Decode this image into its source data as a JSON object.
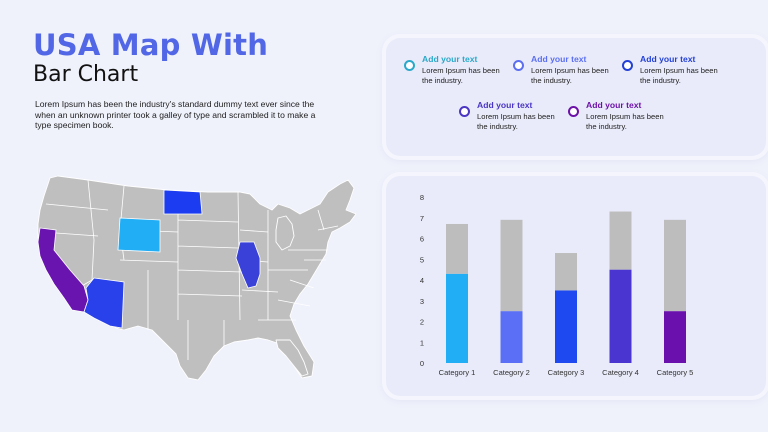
{
  "title": {
    "line1": "USA Map With",
    "line2": "Bar Chart"
  },
  "description": "Lorem Ipsum has been the industry's standard dummy text ever since the when an unknown printer took a galley of type and scrambled it to make a type specimen book.",
  "legend": [
    {
      "title": "Add your text",
      "body": "Lorem Ipsum has been the industry.",
      "color": "#2aa8c9"
    },
    {
      "title": "Add your text",
      "body": "Lorem Ipsum has been the industry.",
      "color": "#5b6ff0"
    },
    {
      "title": "Add your text",
      "body": "Lorem Ipsum has been the industry.",
      "color": "#2341d6"
    },
    {
      "title": "Add your text",
      "body": "Lorem Ipsum has been the industry.",
      "color": "#4a35c4"
    },
    {
      "title": "Add your text",
      "body": "Lorem Ipsum has been the industry.",
      "color": "#6d12a8"
    }
  ],
  "map": {
    "base_color": "#bfbfbf",
    "highlights": [
      {
        "state": "California",
        "color": "#6a14b0"
      },
      {
        "state": "Arizona",
        "color": "#2841ea"
      },
      {
        "state": "Wyoming",
        "color": "#22aef5"
      },
      {
        "state": "North Dakota",
        "color": "#1b3cf0"
      },
      {
        "state": "Illinois",
        "color": "#3a41d8"
      }
    ]
  },
  "chart_data": {
    "type": "bar",
    "stacked": true,
    "categories": [
      "Category 1",
      "Category 2",
      "Category 3",
      "Category 4",
      "Category 5"
    ],
    "series": [
      {
        "values": [
          4.3,
          2.5,
          3.5,
          4.5,
          2.5
        ],
        "colors": [
          "#22aef5",
          "#5a6ff5",
          "#1e48f0",
          "#4a35d0",
          "#6a10ad"
        ]
      },
      {
        "values": [
          2.4,
          4.4,
          1.8,
          2.8,
          4.4
        ],
        "color": "#bdbdbd"
      }
    ],
    "ylim": [
      0,
      8
    ],
    "yticks": [
      "0",
      "1",
      "2",
      "3",
      "4",
      "5",
      "6",
      "7",
      "8"
    ],
    "grid": false
  }
}
